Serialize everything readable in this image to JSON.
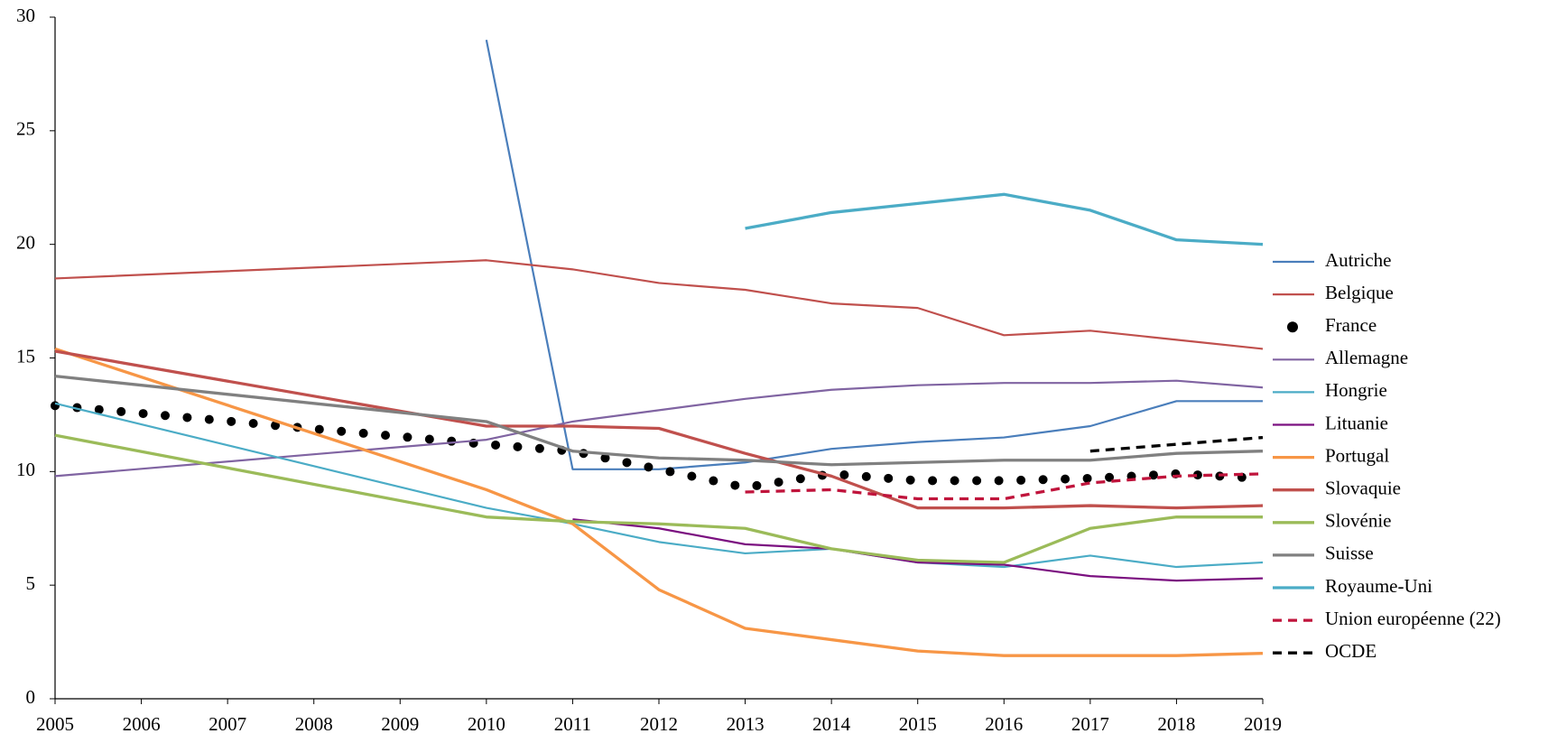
{
  "chart_data": {
    "type": "line",
    "xlim": [
      2005,
      2019
    ],
    "xticks": [
      2005,
      2006,
      2007,
      2008,
      2009,
      2010,
      2011,
      2012,
      2013,
      2014,
      2015,
      2016,
      2017,
      2018,
      2019
    ],
    "ylim": [
      0,
      30
    ],
    "yticks": [
      0,
      5,
      10,
      15,
      20,
      25,
      30
    ],
    "grid": false,
    "legend": "right",
    "series": [
      {
        "name": "Autriche",
        "color": "#4a7ebb",
        "weight": "thin",
        "line_style": "solid",
        "x": [
          2010,
          2011,
          2012,
          2013,
          2014,
          2015,
          2016,
          2017,
          2018,
          2019
        ],
        "values": [
          29,
          10.1,
          10.1,
          10.4,
          11.0,
          11.3,
          11.5,
          12.0,
          13.1,
          13.1
        ]
      },
      {
        "name": "Belgique",
        "color": "#c0504d",
        "weight": "thin",
        "line_style": "solid",
        "x": [
          2005,
          2010,
          2011,
          2012,
          2013,
          2014,
          2015,
          2016,
          2017,
          2018,
          2019
        ],
        "values": [
          18.5,
          19.3,
          18.9,
          18.3,
          18.0,
          17.4,
          17.2,
          16.0,
          16.2,
          15.8,
          15.4
        ]
      },
      {
        "name": "France",
        "color": "#000000",
        "weight": "thick",
        "line_style": "dotted",
        "x": [
          2005,
          2010,
          2011,
          2012,
          2013,
          2014,
          2015,
          2016,
          2017,
          2018,
          2019
        ],
        "values": [
          12.9,
          11.2,
          10.9,
          10.1,
          9.3,
          9.9,
          9.6,
          9.6,
          9.7,
          9.9,
          9.7
        ]
      },
      {
        "name": "Allemagne",
        "color": "#8064a2",
        "weight": "thin",
        "line_style": "solid",
        "x": [
          2005,
          2010,
          2011,
          2012,
          2013,
          2014,
          2015,
          2016,
          2017,
          2018,
          2019
        ],
        "values": [
          9.8,
          11.4,
          12.2,
          12.7,
          13.2,
          13.6,
          13.8,
          13.9,
          13.9,
          14.0,
          13.7
        ]
      },
      {
        "name": "Hongrie",
        "color": "#4bacc6",
        "weight": "thin",
        "line_style": "solid",
        "x": [
          2005,
          2010,
          2011,
          2012,
          2013,
          2014,
          2015,
          2016,
          2017,
          2018,
          2019
        ],
        "values": [
          13.0,
          8.4,
          7.7,
          6.9,
          6.4,
          6.6,
          6.0,
          5.8,
          6.3,
          5.8,
          6.0
        ]
      },
      {
        "name": "Lituanie",
        "color": "#7b1080",
        "weight": "thin",
        "line_style": "solid",
        "x": [
          2011,
          2012,
          2013,
          2014,
          2015,
          2016,
          2017,
          2018,
          2019
        ],
        "values": [
          7.9,
          7.5,
          6.8,
          6.6,
          6.0,
          5.9,
          5.4,
          5.2,
          5.3
        ]
      },
      {
        "name": "Portugal",
        "color": "#f79646",
        "weight": "thick",
        "line_style": "solid",
        "x": [
          2005,
          2010,
          2011,
          2012,
          2013,
          2014,
          2015,
          2016,
          2017,
          2018,
          2019
        ],
        "values": [
          15.4,
          9.2,
          7.7,
          4.8,
          3.1,
          2.6,
          2.1,
          1.9,
          1.9,
          1.9,
          2.0
        ]
      },
      {
        "name": "Slovaquie",
        "color": "#c0504d",
        "weight": "thick",
        "line_style": "solid",
        "x": [
          2005,
          2010,
          2011,
          2012,
          2013,
          2014,
          2015,
          2016,
          2017,
          2018,
          2019
        ],
        "values": [
          15.3,
          12.0,
          12.0,
          11.9,
          10.8,
          9.8,
          8.4,
          8.4,
          8.5,
          8.4,
          8.5
        ]
      },
      {
        "name": "Slovénie",
        "color": "#9bbb59",
        "weight": "thick",
        "line_style": "solid",
        "x": [
          2005,
          2010,
          2011,
          2012,
          2013,
          2014,
          2015,
          2016,
          2017,
          2018,
          2019
        ],
        "values": [
          11.6,
          8.0,
          7.8,
          7.7,
          7.5,
          6.6,
          6.1,
          6.0,
          7.5,
          8.0,
          8.0
        ]
      },
      {
        "name": "Suisse",
        "color": "#808080",
        "weight": "thick",
        "line_style": "solid",
        "x": [
          2005,
          2010,
          2011,
          2012,
          2013,
          2014,
          2015,
          2016,
          2017,
          2018,
          2019
        ],
        "values": [
          14.2,
          12.2,
          10.9,
          10.6,
          10.5,
          10.3,
          10.4,
          10.5,
          10.5,
          10.8,
          10.9
        ]
      },
      {
        "name": "Royaume-Uni",
        "color": "#4bacc6",
        "weight": "thick",
        "line_style": "solid",
        "x": [
          2013,
          2014,
          2015,
          2016,
          2017,
          2018,
          2019
        ],
        "values": [
          20.7,
          21.4,
          21.8,
          22.2,
          21.5,
          20.2,
          20.0
        ]
      },
      {
        "name": "Union européenne (22)",
        "color": "#c0143c",
        "weight": "thick",
        "line_style": "dashed",
        "x": [
          2013,
          2014,
          2015,
          2016,
          2017,
          2018,
          2019
        ],
        "values": [
          9.1,
          9.2,
          8.8,
          8.8,
          9.5,
          9.8,
          9.9
        ]
      },
      {
        "name": "OCDE",
        "color": "#000000",
        "weight": "thick",
        "line_style": "dashed",
        "x": [
          2017,
          2018,
          2019
        ],
        "values": [
          10.9,
          11.2,
          11.5
        ]
      }
    ]
  }
}
